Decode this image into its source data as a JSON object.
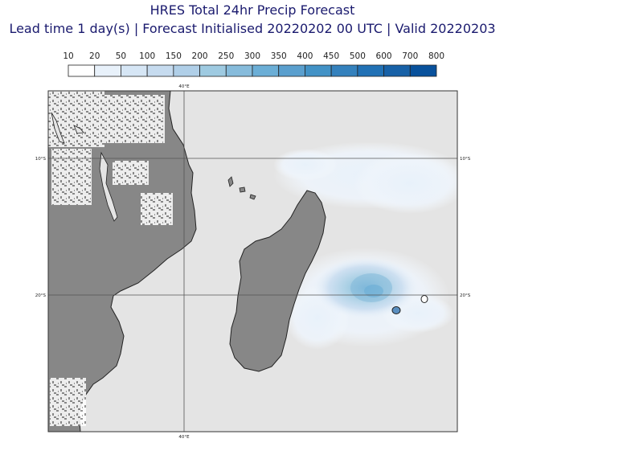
{
  "title": {
    "line1": "HRES Total 24hr Precip Forecast",
    "line2": "Lead time 1 day(s) | Forecast Initialised 20220202 00 UTC | Valid 20220203"
  },
  "legend": {
    "labels": [
      "10",
      "20",
      "50",
      "100",
      "150",
      "200",
      "250",
      "300",
      "350",
      "400",
      "450",
      "500",
      "600",
      "700",
      "800"
    ],
    "colors": [
      "#ffffff",
      "#e8f1fa",
      "#d6e6f5",
      "#c6dbef",
      "#b0cfe8",
      "#9ecae1",
      "#86bbdb",
      "#6baed6",
      "#5a9fce",
      "#4292c6",
      "#3481bd",
      "#2171b5",
      "#1761a7",
      "#08519c",
      "#083a7a"
    ]
  },
  "map": {
    "lon_labels": [
      "40°E",
      "40°E"
    ],
    "lat_labels": [
      "10°S",
      "10°S",
      "20°S",
      "20°S"
    ],
    "colors": {
      "ocean": "#e4e4e4",
      "land": "#878787",
      "coast": "#222222",
      "grid": "#555555"
    }
  }
}
